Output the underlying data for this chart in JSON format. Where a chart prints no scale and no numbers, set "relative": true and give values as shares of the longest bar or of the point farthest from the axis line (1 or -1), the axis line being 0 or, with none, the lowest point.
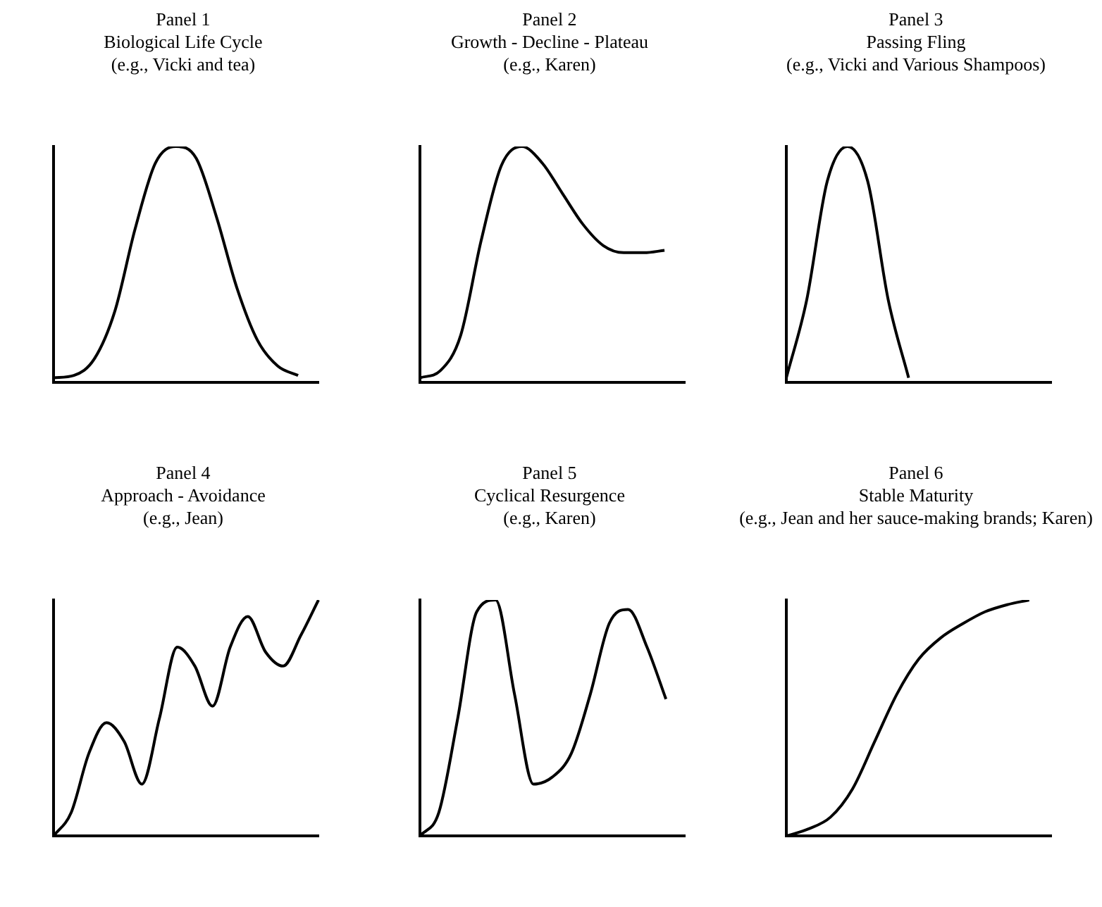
{
  "chart_data": [
    {
      "type": "line",
      "title": "Panel 1",
      "subtitle": "Biological Life Cycle",
      "annotations": [
        "(e.g., Vicki and tea)"
      ],
      "categories": [
        null,
        null,
        null,
        null,
        null,
        null,
        null,
        null,
        null,
        null,
        null,
        null,
        null,
        null
      ],
      "values": [
        0.02,
        0.03,
        0.1,
        0.3,
        0.65,
        0.93,
        1,
        0.95,
        0.7,
        0.4,
        0.18,
        0.07,
        0.03,
        null
      ],
      "color": "#000000",
      "relative": true,
      "marker": "none"
    },
    {
      "type": "line",
      "title": "Panel 2",
      "subtitle": "Growth - Decline - Plateau",
      "annotations": [
        "(e.g., Karen)"
      ],
      "categories": [
        null,
        null,
        null,
        null,
        null,
        null,
        null,
        null,
        null,
        null,
        null,
        null,
        null,
        null
      ],
      "values": [
        0.02,
        0.05,
        0.2,
        0.6,
        0.92,
        1,
        0.93,
        0.8,
        0.67,
        0.58,
        0.55,
        0.55,
        0.56,
        null
      ],
      "color": "#000000",
      "relative": true,
      "marker": "none"
    },
    {
      "type": "line",
      "title": "Panel 3",
      "subtitle": "Passing Fling",
      "annotations": [
        "(e.g., Vicki and Various Shampoos)"
      ],
      "categories": [
        null,
        null,
        null,
        null,
        null,
        null,
        null,
        null,
        null,
        null,
        null,
        null,
        null,
        null
      ],
      "values": [
        0.02,
        0.35,
        0.85,
        1,
        0.85,
        0.35,
        0.02,
        null,
        null,
        null,
        null,
        null,
        null,
        null
      ],
      "color": "#000000",
      "relative": true,
      "marker": "none"
    },
    {
      "type": "line",
      "title": "Panel 4",
      "subtitle": "Approach - Avoidance",
      "annotations": [
        "(e.g., Jean)"
      ],
      "categories": [
        null,
        null,
        null,
        null,
        null,
        null,
        null,
        null,
        null,
        null,
        null,
        null,
        null,
        null,
        null,
        null
      ],
      "values": [
        0,
        0.1,
        0.35,
        0.48,
        0.4,
        0.22,
        0.5,
        0.8,
        0.72,
        0.55,
        0.8,
        0.93,
        0.78,
        0.72,
        0.85,
        1
      ],
      "color": "#000000",
      "relative": true,
      "marker": "none"
    },
    {
      "type": "line",
      "title": "Panel 5",
      "subtitle": "Cyclical Resurgence",
      "annotations": [
        "(e.g., Karen)"
      ],
      "categories": [
        null,
        null,
        null,
        null,
        null,
        null,
        null,
        null,
        null,
        null,
        null,
        null,
        null,
        null,
        null
      ],
      "values": [
        0,
        0.1,
        0.5,
        0.95,
        1,
        0.6,
        0.22,
        0.25,
        0.35,
        0.6,
        0.9,
        0.96,
        0.8,
        0.58,
        null
      ],
      "color": "#000000",
      "relative": true,
      "marker": "none"
    },
    {
      "type": "line",
      "title": "Panel 6",
      "subtitle": "Stable Maturity",
      "annotations": [
        "(e.g., Jean and her sauce-making brands; Karen)"
      ],
      "categories": [
        null,
        null,
        null,
        null,
        null,
        null,
        null,
        null,
        null,
        null,
        null,
        null,
        null
      ],
      "values": [
        0,
        0.03,
        0.08,
        0.2,
        0.4,
        0.6,
        0.75,
        0.84,
        0.9,
        0.95,
        0.98,
        1,
        null
      ],
      "color": "#000000",
      "relative": true,
      "marker": "none"
    }
  ]
}
